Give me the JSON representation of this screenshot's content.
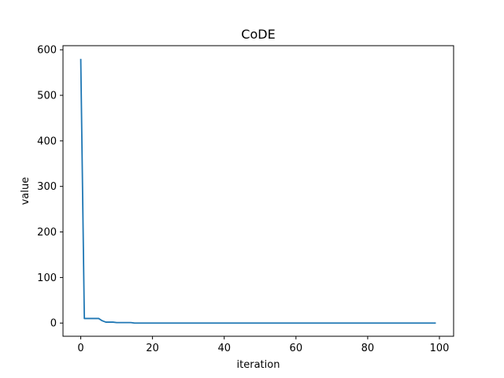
{
  "chart_data": {
    "type": "line",
    "title": "CoDE",
    "xlabel": "iteration",
    "ylabel": "value",
    "xlim": [
      -4.95,
      103.95
    ],
    "ylim": [
      -29,
      609
    ],
    "xticks": [
      0,
      20,
      40,
      60,
      80,
      100
    ],
    "yticks": [
      0,
      100,
      200,
      300,
      400,
      500,
      600
    ],
    "grid": false,
    "legend": "none",
    "line_color": "#1f77b4",
    "series": [
      {
        "x": [
          0,
          1,
          2,
          3,
          4,
          5,
          6,
          7,
          8,
          9,
          10,
          11,
          12,
          13,
          14,
          15,
          16,
          17,
          18,
          19,
          20,
          30,
          40,
          50,
          60,
          70,
          80,
          90,
          99
        ],
        "y": [
          580,
          10,
          10,
          10,
          10,
          10,
          5,
          2,
          2,
          2,
          1,
          1,
          1,
          1,
          1,
          0,
          0,
          0,
          0,
          0,
          0,
          0,
          0,
          0,
          0,
          0,
          0,
          0,
          0
        ]
      }
    ]
  }
}
